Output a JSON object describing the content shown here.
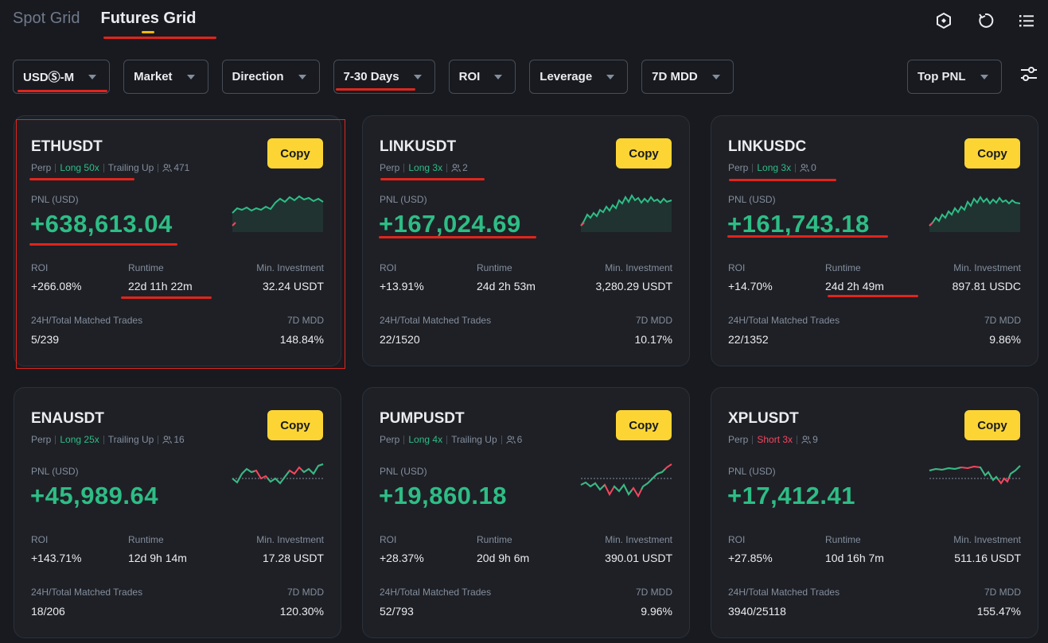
{
  "tabs": [
    {
      "label": "Spot Grid",
      "active": false
    },
    {
      "label": "Futures Grid",
      "active": true
    }
  ],
  "header_icons": [
    "strategy-hexagon-icon",
    "refresh-icon",
    "list-menu-icon"
  ],
  "filters": [
    "USDⓈ-M",
    "Market",
    "Direction",
    "7-30 Days",
    "ROI",
    "Leverage",
    "7D MDD"
  ],
  "sort": {
    "label": "Top PNL"
  },
  "labels": {
    "pnl": "PNL (USD)",
    "roi": "ROI",
    "runtime": "Runtime",
    "min_investment": "Min. Investment",
    "matched_trades": "24H/Total Matched Trades",
    "mdd": "7D MDD",
    "copy": "Copy"
  },
  "colors": {
    "accent": "#fcd535",
    "up": "#2ebd85",
    "down": "#f6465d",
    "annotation": "#e0251c"
  },
  "cards": [
    {
      "symbol": "ETHUSDT",
      "type": "Perp",
      "direction": "Long 50x",
      "dir": "long",
      "trailing": "Trailing Up",
      "copiers": "471",
      "pnl": "+638,613.04",
      "roi": "+266.08%",
      "runtime": "22d 11h 22m",
      "min_investment": "32.24 USDT",
      "matched_trades": "5/239",
      "mdd": "148.84%"
    },
    {
      "symbol": "LINKUSDT",
      "type": "Perp",
      "direction": "Long 3x",
      "dir": "long",
      "trailing": "",
      "copiers": "2",
      "pnl": "+167,024.69",
      "roi": "+13.91%",
      "runtime": "24d 2h 53m",
      "min_investment": "3,280.29 USDT",
      "matched_trades": "22/1520",
      "mdd": "10.17%"
    },
    {
      "symbol": "LINKUSDC",
      "type": "Perp",
      "direction": "Long 3x",
      "dir": "long",
      "trailing": "",
      "copiers": "0",
      "pnl": "+161,743.18",
      "roi": "+14.70%",
      "runtime": "24d 2h 49m",
      "min_investment": "897.81 USDC",
      "matched_trades": "22/1352",
      "mdd": "9.86%"
    },
    {
      "symbol": "ENAUSDT",
      "type": "Perp",
      "direction": "Long 25x",
      "dir": "long",
      "trailing": "Trailing Up",
      "copiers": "16",
      "pnl": "+45,989.64",
      "roi": "+143.71%",
      "runtime": "12d 9h 14m",
      "min_investment": "17.28 USDT",
      "matched_trades": "18/206",
      "mdd": "120.30%"
    },
    {
      "symbol": "PUMPUSDT",
      "type": "Perp",
      "direction": "Long 4x",
      "dir": "long",
      "trailing": "Trailing Up",
      "copiers": "6",
      "pnl": "+19,860.18",
      "roi": "+28.37%",
      "runtime": "20d 9h 6m",
      "min_investment": "390.01 USDT",
      "matched_trades": "52/793",
      "mdd": "9.96%"
    },
    {
      "symbol": "XPLUSDT",
      "type": "Perp",
      "direction": "Short 3x",
      "dir": "short",
      "trailing": "",
      "copiers": "9",
      "pnl": "+17,412.41",
      "roi": "+27.85%",
      "runtime": "10d 16h 7m",
      "min_investment": "511.16 USDT",
      "matched_trades": "3940/25118",
      "mdd": "155.47%"
    }
  ]
}
